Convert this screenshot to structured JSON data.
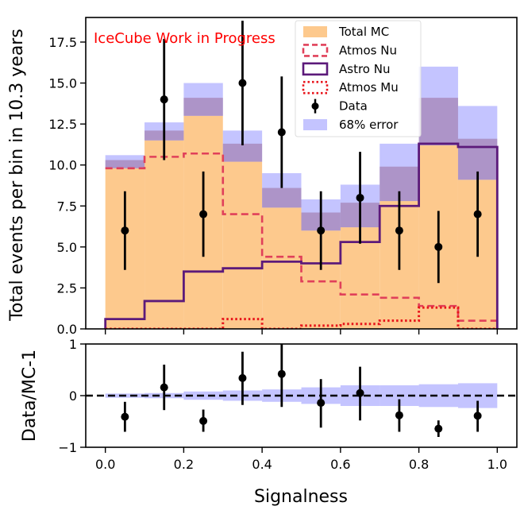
{
  "chart_data": [
    {
      "type": "histogram",
      "panel": "main",
      "bin_edges": [
        0.0,
        0.1,
        0.2,
        0.3,
        0.4,
        0.5,
        0.6,
        0.7,
        0.8,
        0.9,
        1.0
      ],
      "bin_centers": [
        0.05,
        0.15,
        0.25,
        0.35,
        0.45,
        0.55,
        0.65,
        0.75,
        0.85,
        0.95
      ],
      "ylabel": "Total events per bin in 10.3 years",
      "ylim": [
        0,
        19
      ],
      "yticks": [
        "0.0",
        "2.5",
        "5.0",
        "7.5",
        "10.0",
        "12.5",
        "15.0",
        "17.5"
      ],
      "annotation": "IceCube Work in Progress",
      "series": [
        {
          "name": "Total MC",
          "style": "filled",
          "color": "#fdc98d",
          "values": [
            9.8,
            11.5,
            13.0,
            10.2,
            7.4,
            6.0,
            6.2,
            7.8,
            11.2,
            9.1
          ]
        },
        {
          "name": "Atmos Nu",
          "style": "dashed-step",
          "color": "#e0405a",
          "values": [
            9.8,
            10.5,
            10.7,
            7.0,
            4.4,
            2.9,
            2.1,
            1.9,
            1.4,
            0.5
          ]
        },
        {
          "name": "Astro Nu",
          "style": "solid-step",
          "color": "#5c1a7a",
          "values": [
            0.6,
            1.7,
            3.5,
            3.7,
            4.1,
            4.0,
            5.3,
            7.5,
            11.3,
            11.1
          ]
        },
        {
          "name": "Atmos Mu",
          "style": "dotted-step",
          "color": "#e8131a",
          "values": [
            0.0,
            0.0,
            0.0,
            0.6,
            0.0,
            0.2,
            0.3,
            0.5,
            1.3,
            0.0
          ]
        },
        {
          "name": "68% error",
          "style": "band",
          "color": "#8a8aff",
          "lower": [
            9.8,
            11.5,
            13.0,
            10.2,
            7.4,
            6.0,
            6.2,
            7.8,
            11.2,
            9.1
          ],
          "upper": [
            10.6,
            12.6,
            15.0,
            12.1,
            9.5,
            7.9,
            8.8,
            11.3,
            16.0,
            13.6
          ],
          "dark_lower": [
            9.8,
            11.5,
            13.0,
            10.2,
            7.4,
            6.0,
            6.2,
            7.8,
            11.2,
            9.1
          ],
          "dark_upper": [
            10.3,
            12.1,
            14.1,
            11.3,
            8.6,
            7.1,
            7.7,
            9.9,
            14.1,
            11.6
          ]
        },
        {
          "name": "Data",
          "style": "points",
          "color": "#000000",
          "values": [
            6,
            14,
            7,
            15,
            12,
            6,
            8,
            6,
            5,
            7
          ],
          "err_low": [
            3.6,
            10.3,
            4.4,
            11.2,
            8.6,
            3.6,
            5.2,
            3.6,
            2.8,
            4.4
          ],
          "err_high": [
            8.4,
            17.7,
            9.6,
            18.8,
            15.4,
            8.4,
            10.8,
            8.4,
            7.2,
            9.6
          ]
        }
      ],
      "legend": {
        "placement": "top-right",
        "entries": [
          "Total MC",
          "Atmos Nu",
          "Astro Nu",
          "Atmos Mu",
          "Data",
          "68% error"
        ]
      }
    },
    {
      "type": "scatter",
      "panel": "ratio",
      "xlabel": "Signalness",
      "ylabel": "Data/MC-1",
      "xlim": [
        -0.05,
        1.05
      ],
      "ylim": [
        -1,
        1
      ],
      "xticks": [
        "0.0",
        "0.2",
        "0.4",
        "0.6",
        "0.8",
        "1.0"
      ],
      "yticks": [
        "-1",
        "0",
        "1"
      ],
      "reference_line": 0,
      "x": [
        0.05,
        0.15,
        0.25,
        0.35,
        0.45,
        0.55,
        0.65,
        0.75,
        0.85,
        0.95
      ],
      "values": [
        -0.41,
        0.16,
        -0.49,
        0.34,
        0.42,
        -0.14,
        0.05,
        -0.38,
        -0.64,
        -0.39
      ],
      "err_low": [
        -0.7,
        -0.28,
        -0.7,
        -0.18,
        -0.22,
        -0.62,
        -0.48,
        -0.7,
        -0.8,
        -0.7
      ],
      "err_high": [
        -0.12,
        0.6,
        -0.27,
        0.85,
        1.0,
        0.32,
        0.56,
        -0.07,
        -0.48,
        -0.1
      ],
      "band_half_width": [
        0.04,
        0.05,
        0.08,
        0.1,
        0.12,
        0.16,
        0.2,
        0.2,
        0.22,
        0.24
      ]
    }
  ]
}
